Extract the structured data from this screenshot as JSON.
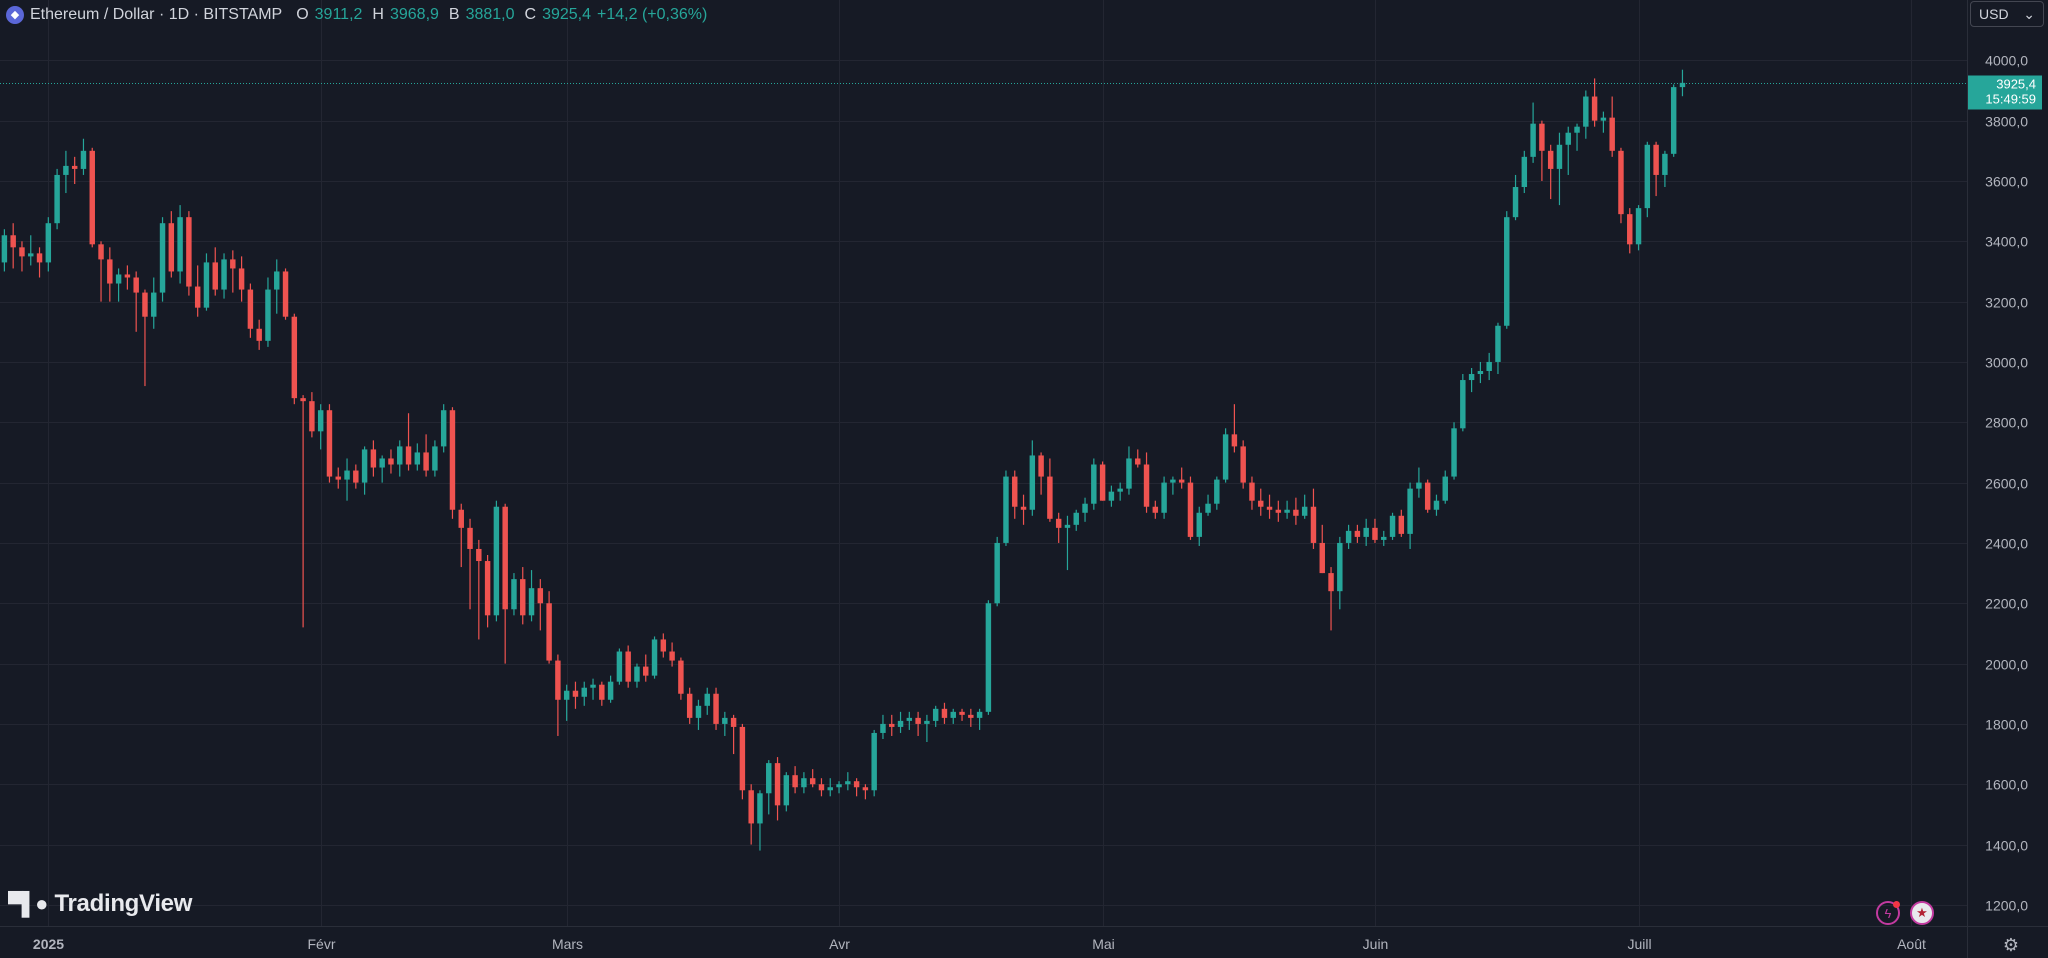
{
  "header": {
    "symbol": "Ethereum / Dollar · 1D · BITSTAMP",
    "open_label": "O",
    "open": "3911,2",
    "high_label": "H",
    "high": "3968,9",
    "low_label": "B",
    "low": "3881,0",
    "close_label": "C",
    "close": "3925,4",
    "change": "+14,2 (+0,36%)",
    "icon": "ethereum-icon"
  },
  "currency": {
    "value": "USD",
    "icon": "chevron-down-icon"
  },
  "price_tag": {
    "price": "3925,4",
    "countdown": "15:49:59"
  },
  "brand": {
    "name": "TradingView",
    "mark": "17"
  },
  "icons": {
    "flash": "flash-icon",
    "flag": "us-flag-icon",
    "settings": "gear-icon"
  },
  "colors": {
    "background": "#161a25",
    "up": "#26a69a",
    "down": "#ef5350",
    "grid": "#232632",
    "text": "#d1d4dc"
  },
  "chart_data": {
    "type": "candlestick",
    "ylim": [
      1130,
      4200
    ],
    "y_ticks": [
      1200,
      1400,
      1600,
      1800,
      2000,
      2200,
      2400,
      2600,
      2800,
      3000,
      3200,
      3400,
      3600,
      3800,
      4000
    ],
    "y_tick_labels": [
      "1200,0",
      "1400,0",
      "1600,0",
      "1800,0",
      "2000,0",
      "2200,0",
      "2400,0",
      "2600,0",
      "2800,0",
      "3000,0",
      "3200,0",
      "3400,0",
      "3600,0",
      "3800,0",
      "4000,0"
    ],
    "x_start": "2024-12-27",
    "x_ticks": [
      {
        "date": "2025-01-01",
        "label": "2025",
        "bold": true
      },
      {
        "date": "2025-02-01",
        "label": "Févr"
      },
      {
        "date": "2025-03-01",
        "label": "Mars"
      },
      {
        "date": "2025-04-01",
        "label": "Avr"
      },
      {
        "date": "2025-05-01",
        "label": "Mai"
      },
      {
        "date": "2025-06-01",
        "label": "Juin"
      },
      {
        "date": "2025-07-01",
        "label": "Juill"
      },
      {
        "date": "2025-08-01",
        "label": "Août"
      }
    ],
    "last_price": 3925.4,
    "grid": true,
    "candles": [
      [
        3330,
        3440,
        3300,
        3420
      ],
      [
        3420,
        3460,
        3310,
        3380
      ],
      [
        3380,
        3400,
        3300,
        3350
      ],
      [
        3350,
        3420,
        3320,
        3360
      ],
      [
        3360,
        3380,
        3280,
        3330
      ],
      [
        3330,
        3480,
        3300,
        3460
      ],
      [
        3460,
        3640,
        3440,
        3620
      ],
      [
        3620,
        3700,
        3560,
        3650
      ],
      [
        3650,
        3680,
        3590,
        3640
      ],
      [
        3640,
        3740,
        3620,
        3700
      ],
      [
        3700,
        3710,
        3380,
        3390
      ],
      [
        3390,
        3400,
        3200,
        3340
      ],
      [
        3340,
        3380,
        3200,
        3260
      ],
      [
        3260,
        3310,
        3200,
        3290
      ],
      [
        3290,
        3320,
        3240,
        3280
      ],
      [
        3280,
        3300,
        3100,
        3230
      ],
      [
        3230,
        3240,
        2920,
        3150
      ],
      [
        3150,
        3280,
        3110,
        3230
      ],
      [
        3230,
        3480,
        3200,
        3460
      ],
      [
        3460,
        3500,
        3280,
        3300
      ],
      [
        3300,
        3520,
        3260,
        3480
      ],
      [
        3480,
        3500,
        3220,
        3250
      ],
      [
        3250,
        3320,
        3150,
        3180
      ],
      [
        3180,
        3360,
        3170,
        3330
      ],
      [
        3330,
        3380,
        3220,
        3240
      ],
      [
        3240,
        3360,
        3210,
        3340
      ],
      [
        3340,
        3370,
        3230,
        3310
      ],
      [
        3310,
        3350,
        3200,
        3240
      ],
      [
        3240,
        3260,
        3080,
        3110
      ],
      [
        3110,
        3140,
        3040,
        3070
      ],
      [
        3070,
        3280,
        3050,
        3240
      ],
      [
        3240,
        3340,
        3160,
        3300
      ],
      [
        3300,
        3310,
        3140,
        3150
      ],
      [
        3150,
        3160,
        2860,
        2880
      ],
      [
        2880,
        2890,
        2120,
        2870
      ],
      [
        2870,
        2900,
        2750,
        2770
      ],
      [
        2770,
        2860,
        2710,
        2840
      ],
      [
        2840,
        2860,
        2600,
        2620
      ],
      [
        2620,
        2650,
        2580,
        2610
      ],
      [
        2610,
        2680,
        2540,
        2640
      ],
      [
        2640,
        2660,
        2580,
        2600
      ],
      [
        2600,
        2720,
        2560,
        2710
      ],
      [
        2710,
        2740,
        2620,
        2650
      ],
      [
        2650,
        2690,
        2600,
        2680
      ],
      [
        2680,
        2710,
        2630,
        2660
      ],
      [
        2660,
        2740,
        2620,
        2720
      ],
      [
        2720,
        2830,
        2640,
        2660
      ],
      [
        2660,
        2730,
        2640,
        2700
      ],
      [
        2700,
        2760,
        2620,
        2640
      ],
      [
        2640,
        2740,
        2620,
        2720
      ],
      [
        2720,
        2860,
        2700,
        2840
      ],
      [
        2840,
        2850,
        2480,
        2510
      ],
      [
        2510,
        2530,
        2320,
        2450
      ],
      [
        2450,
        2480,
        2180,
        2380
      ],
      [
        2380,
        2410,
        2080,
        2340
      ],
      [
        2340,
        2360,
        2120,
        2160
      ],
      [
        2160,
        2540,
        2140,
        2520
      ],
      [
        2520,
        2530,
        2000,
        2180
      ],
      [
        2180,
        2300,
        2160,
        2280
      ],
      [
        2280,
        2320,
        2130,
        2160
      ],
      [
        2160,
        2310,
        2140,
        2250
      ],
      [
        2250,
        2280,
        2110,
        2200
      ],
      [
        2200,
        2240,
        2000,
        2010
      ],
      [
        2010,
        2030,
        1760,
        1880
      ],
      [
        1880,
        1930,
        1810,
        1910
      ],
      [
        1910,
        1940,
        1850,
        1890
      ],
      [
        1890,
        1940,
        1860,
        1920
      ],
      [
        1920,
        1950,
        1880,
        1930
      ],
      [
        1930,
        1940,
        1860,
        1880
      ],
      [
        1880,
        1960,
        1870,
        1940
      ],
      [
        1940,
        2050,
        1930,
        2040
      ],
      [
        2040,
        2060,
        1920,
        1940
      ],
      [
        1940,
        2000,
        1920,
        1990
      ],
      [
        1990,
        2030,
        1940,
        1960
      ],
      [
        1960,
        2090,
        1950,
        2080
      ],
      [
        2080,
        2100,
        2020,
        2040
      ],
      [
        2040,
        2070,
        1990,
        2010
      ],
      [
        2010,
        2020,
        1880,
        1900
      ],
      [
        1900,
        1920,
        1800,
        1820
      ],
      [
        1820,
        1880,
        1780,
        1860
      ],
      [
        1860,
        1920,
        1830,
        1900
      ],
      [
        1900,
        1920,
        1780,
        1800
      ],
      [
        1800,
        1840,
        1760,
        1820
      ],
      [
        1820,
        1830,
        1700,
        1790
      ],
      [
        1790,
        1800,
        1550,
        1580
      ],
      [
        1580,
        1600,
        1400,
        1470
      ],
      [
        1470,
        1580,
        1380,
        1570
      ],
      [
        1570,
        1680,
        1500,
        1670
      ],
      [
        1670,
        1690,
        1480,
        1530
      ],
      [
        1530,
        1640,
        1510,
        1630
      ],
      [
        1630,
        1660,
        1570,
        1590
      ],
      [
        1590,
        1640,
        1570,
        1620
      ],
      [
        1620,
        1650,
        1590,
        1600
      ],
      [
        1600,
        1620,
        1560,
        1580
      ],
      [
        1580,
        1620,
        1560,
        1590
      ],
      [
        1590,
        1610,
        1570,
        1600
      ],
      [
        1600,
        1640,
        1580,
        1610
      ],
      [
        1610,
        1620,
        1560,
        1590
      ],
      [
        1590,
        1600,
        1550,
        1580
      ],
      [
        1580,
        1780,
        1560,
        1770
      ],
      [
        1770,
        1830,
        1750,
        1800
      ],
      [
        1800,
        1830,
        1760,
        1790
      ],
      [
        1790,
        1840,
        1770,
        1810
      ],
      [
        1810,
        1840,
        1780,
        1820
      ],
      [
        1820,
        1840,
        1760,
        1800
      ],
      [
        1800,
        1830,
        1740,
        1810
      ],
      [
        1810,
        1860,
        1790,
        1850
      ],
      [
        1850,
        1870,
        1800,
        1820
      ],
      [
        1820,
        1850,
        1800,
        1840
      ],
      [
        1840,
        1850,
        1810,
        1830
      ],
      [
        1830,
        1850,
        1790,
        1820
      ],
      [
        1820,
        1850,
        1780,
        1840
      ],
      [
        1840,
        2210,
        1830,
        2200
      ],
      [
        2200,
        2420,
        2190,
        2400
      ],
      [
        2400,
        2640,
        2390,
        2620
      ],
      [
        2620,
        2640,
        2480,
        2520
      ],
      [
        2520,
        2560,
        2460,
        2510
      ],
      [
        2510,
        2740,
        2490,
        2690
      ],
      [
        2690,
        2700,
        2560,
        2620
      ],
      [
        2620,
        2680,
        2470,
        2480
      ],
      [
        2480,
        2500,
        2400,
        2450
      ],
      [
        2450,
        2490,
        2310,
        2460
      ],
      [
        2460,
        2510,
        2440,
        2500
      ],
      [
        2500,
        2550,
        2470,
        2530
      ],
      [
        2530,
        2680,
        2510,
        2660
      ],
      [
        2660,
        2670,
        2540,
        2540
      ],
      [
        2540,
        2590,
        2520,
        2570
      ],
      [
        2570,
        2600,
        2540,
        2580
      ],
      [
        2580,
        2720,
        2560,
        2680
      ],
      [
        2680,
        2710,
        2650,
        2660
      ],
      [
        2660,
        2700,
        2500,
        2520
      ],
      [
        2520,
        2540,
        2480,
        2500
      ],
      [
        2500,
        2620,
        2480,
        2600
      ],
      [
        2600,
        2620,
        2560,
        2610
      ],
      [
        2610,
        2650,
        2580,
        2600
      ],
      [
        2600,
        2620,
        2410,
        2420
      ],
      [
        2420,
        2520,
        2390,
        2500
      ],
      [
        2500,
        2560,
        2490,
        2530
      ],
      [
        2530,
        2620,
        2510,
        2610
      ],
      [
        2610,
        2780,
        2600,
        2760
      ],
      [
        2760,
        2860,
        2700,
        2720
      ],
      [
        2720,
        2740,
        2580,
        2600
      ],
      [
        2600,
        2620,
        2510,
        2540
      ],
      [
        2540,
        2580,
        2490,
        2520
      ],
      [
        2520,
        2560,
        2480,
        2510
      ],
      [
        2510,
        2540,
        2470,
        2500
      ],
      [
        2500,
        2540,
        2480,
        2510
      ],
      [
        2510,
        2550,
        2460,
        2490
      ],
      [
        2490,
        2560,
        2480,
        2520
      ],
      [
        2520,
        2580,
        2380,
        2400
      ],
      [
        2400,
        2460,
        2300,
        2300
      ],
      [
        2300,
        2320,
        2110,
        2240
      ],
      [
        2240,
        2420,
        2180,
        2400
      ],
      [
        2400,
        2460,
        2380,
        2440
      ],
      [
        2440,
        2460,
        2400,
        2420
      ],
      [
        2420,
        2480,
        2390,
        2450
      ],
      [
        2450,
        2480,
        2400,
        2410
      ],
      [
        2410,
        2440,
        2390,
        2420
      ],
      [
        2420,
        2500,
        2410,
        2490
      ],
      [
        2490,
        2510,
        2420,
        2430
      ],
      [
        2430,
        2600,
        2380,
        2580
      ],
      [
        2580,
        2650,
        2550,
        2600
      ],
      [
        2600,
        2610,
        2500,
        2510
      ],
      [
        2510,
        2560,
        2490,
        2540
      ],
      [
        2540,
        2640,
        2530,
        2620
      ],
      [
        2620,
        2800,
        2610,
        2780
      ],
      [
        2780,
        2960,
        2770,
        2940
      ],
      [
        2940,
        2980,
        2900,
        2960
      ],
      [
        2960,
        3000,
        2930,
        2970
      ],
      [
        2970,
        3030,
        2940,
        3000
      ],
      [
        3000,
        3130,
        2960,
        3120
      ],
      [
        3120,
        3500,
        3110,
        3480
      ],
      [
        3480,
        3620,
        3470,
        3580
      ],
      [
        3580,
        3700,
        3560,
        3680
      ],
      [
        3680,
        3860,
        3660,
        3790
      ],
      [
        3790,
        3800,
        3600,
        3700
      ],
      [
        3700,
        3720,
        3540,
        3640
      ],
      [
        3640,
        3760,
        3520,
        3720
      ],
      [
        3720,
        3780,
        3620,
        3760
      ],
      [
        3760,
        3790,
        3700,
        3780
      ],
      [
        3780,
        3900,
        3740,
        3880
      ],
      [
        3880,
        3940,
        3780,
        3800
      ],
      [
        3800,
        3830,
        3760,
        3810
      ],
      [
        3810,
        3880,
        3680,
        3700
      ],
      [
        3700,
        3710,
        3460,
        3490
      ],
      [
        3490,
        3510,
        3360,
        3390
      ],
      [
        3390,
        3520,
        3370,
        3510
      ],
      [
        3510,
        3730,
        3480,
        3720
      ],
      [
        3720,
        3730,
        3550,
        3620
      ],
      [
        3620,
        3700,
        3580,
        3690
      ],
      [
        3690,
        3920,
        3680,
        3911.2
      ],
      [
        3911.2,
        3968.9,
        3881,
        3925.4
      ]
    ]
  }
}
